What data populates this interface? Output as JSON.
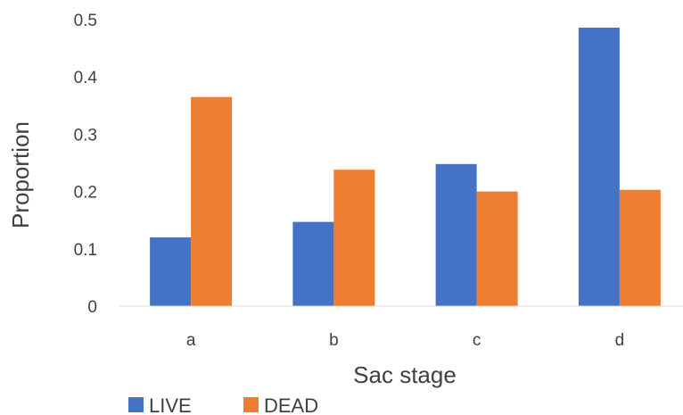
{
  "chart_data": {
    "type": "bar",
    "title": "",
    "xlabel": "Sac stage",
    "ylabel": "Proportion",
    "categories": [
      "a",
      "b",
      "c",
      "d"
    ],
    "ylim": [
      0,
      0.5
    ],
    "yticks": [
      "0",
      "0.1",
      "0.2",
      "0.3",
      "0.4",
      "0.5"
    ],
    "grid": false,
    "legend_position": "bottom-left",
    "series": [
      {
        "name": "LIVE",
        "color": "#4472C4",
        "values": [
          0.12,
          0.147,
          0.248,
          0.486
        ]
      },
      {
        "name": "DEAD",
        "color": "#ED7D31",
        "values": [
          0.365,
          0.238,
          0.2,
          0.203
        ]
      }
    ]
  }
}
